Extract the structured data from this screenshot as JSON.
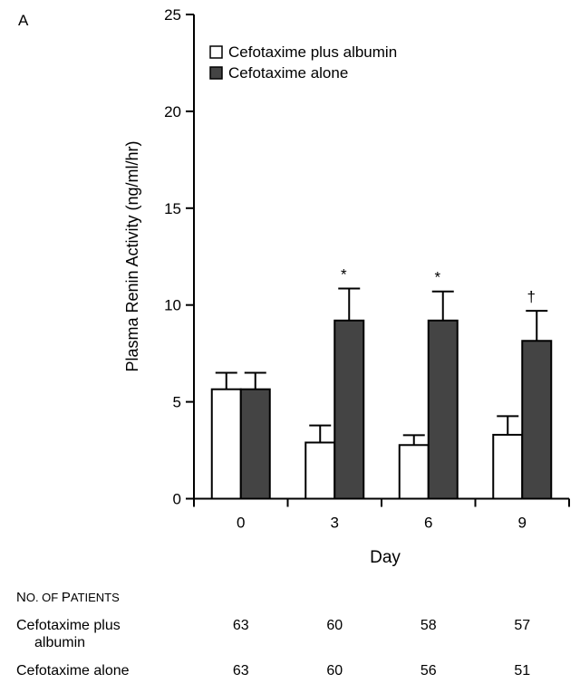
{
  "panel_label": "A",
  "chart_data": {
    "type": "bar",
    "title": "",
    "xlabel": "Day",
    "ylabel": "Plasma Renin Activity (ng/ml/hr)",
    "ylim": [
      0,
      25
    ],
    "yticks": [
      0,
      5,
      10,
      15,
      20,
      25
    ],
    "categories": [
      "0",
      "3",
      "6",
      "9"
    ],
    "legend_position": "top-left",
    "grid": false,
    "series": [
      {
        "name": "Cefotaxime plus albumin",
        "color": "#ffffff",
        "values": [
          5.65,
          2.9,
          2.77,
          3.3
        ],
        "error_upper": [
          6.5,
          3.78,
          3.28,
          4.26
        ]
      },
      {
        "name": "Cefotaxime alone",
        "color": "#444444",
        "values": [
          5.65,
          9.2,
          9.2,
          8.15
        ],
        "error_upper": [
          6.5,
          10.85,
          10.7,
          9.7
        ]
      }
    ],
    "annotations": [
      "",
      "*",
      "*",
      "†"
    ]
  },
  "patients_table": {
    "header_first": "N",
    "header_rest1": "O. OF ",
    "header_p": "P",
    "header_rest2": "ATIENTS",
    "rows": [
      {
        "label_line1": "Cefotaxime plus",
        "label_line2": "albumin",
        "values": [
          "63",
          "60",
          "58",
          "57"
        ]
      },
      {
        "label_line1": "Cefotaxime alone",
        "label_line2": "",
        "values": [
          "63",
          "60",
          "56",
          "51"
        ]
      }
    ]
  }
}
